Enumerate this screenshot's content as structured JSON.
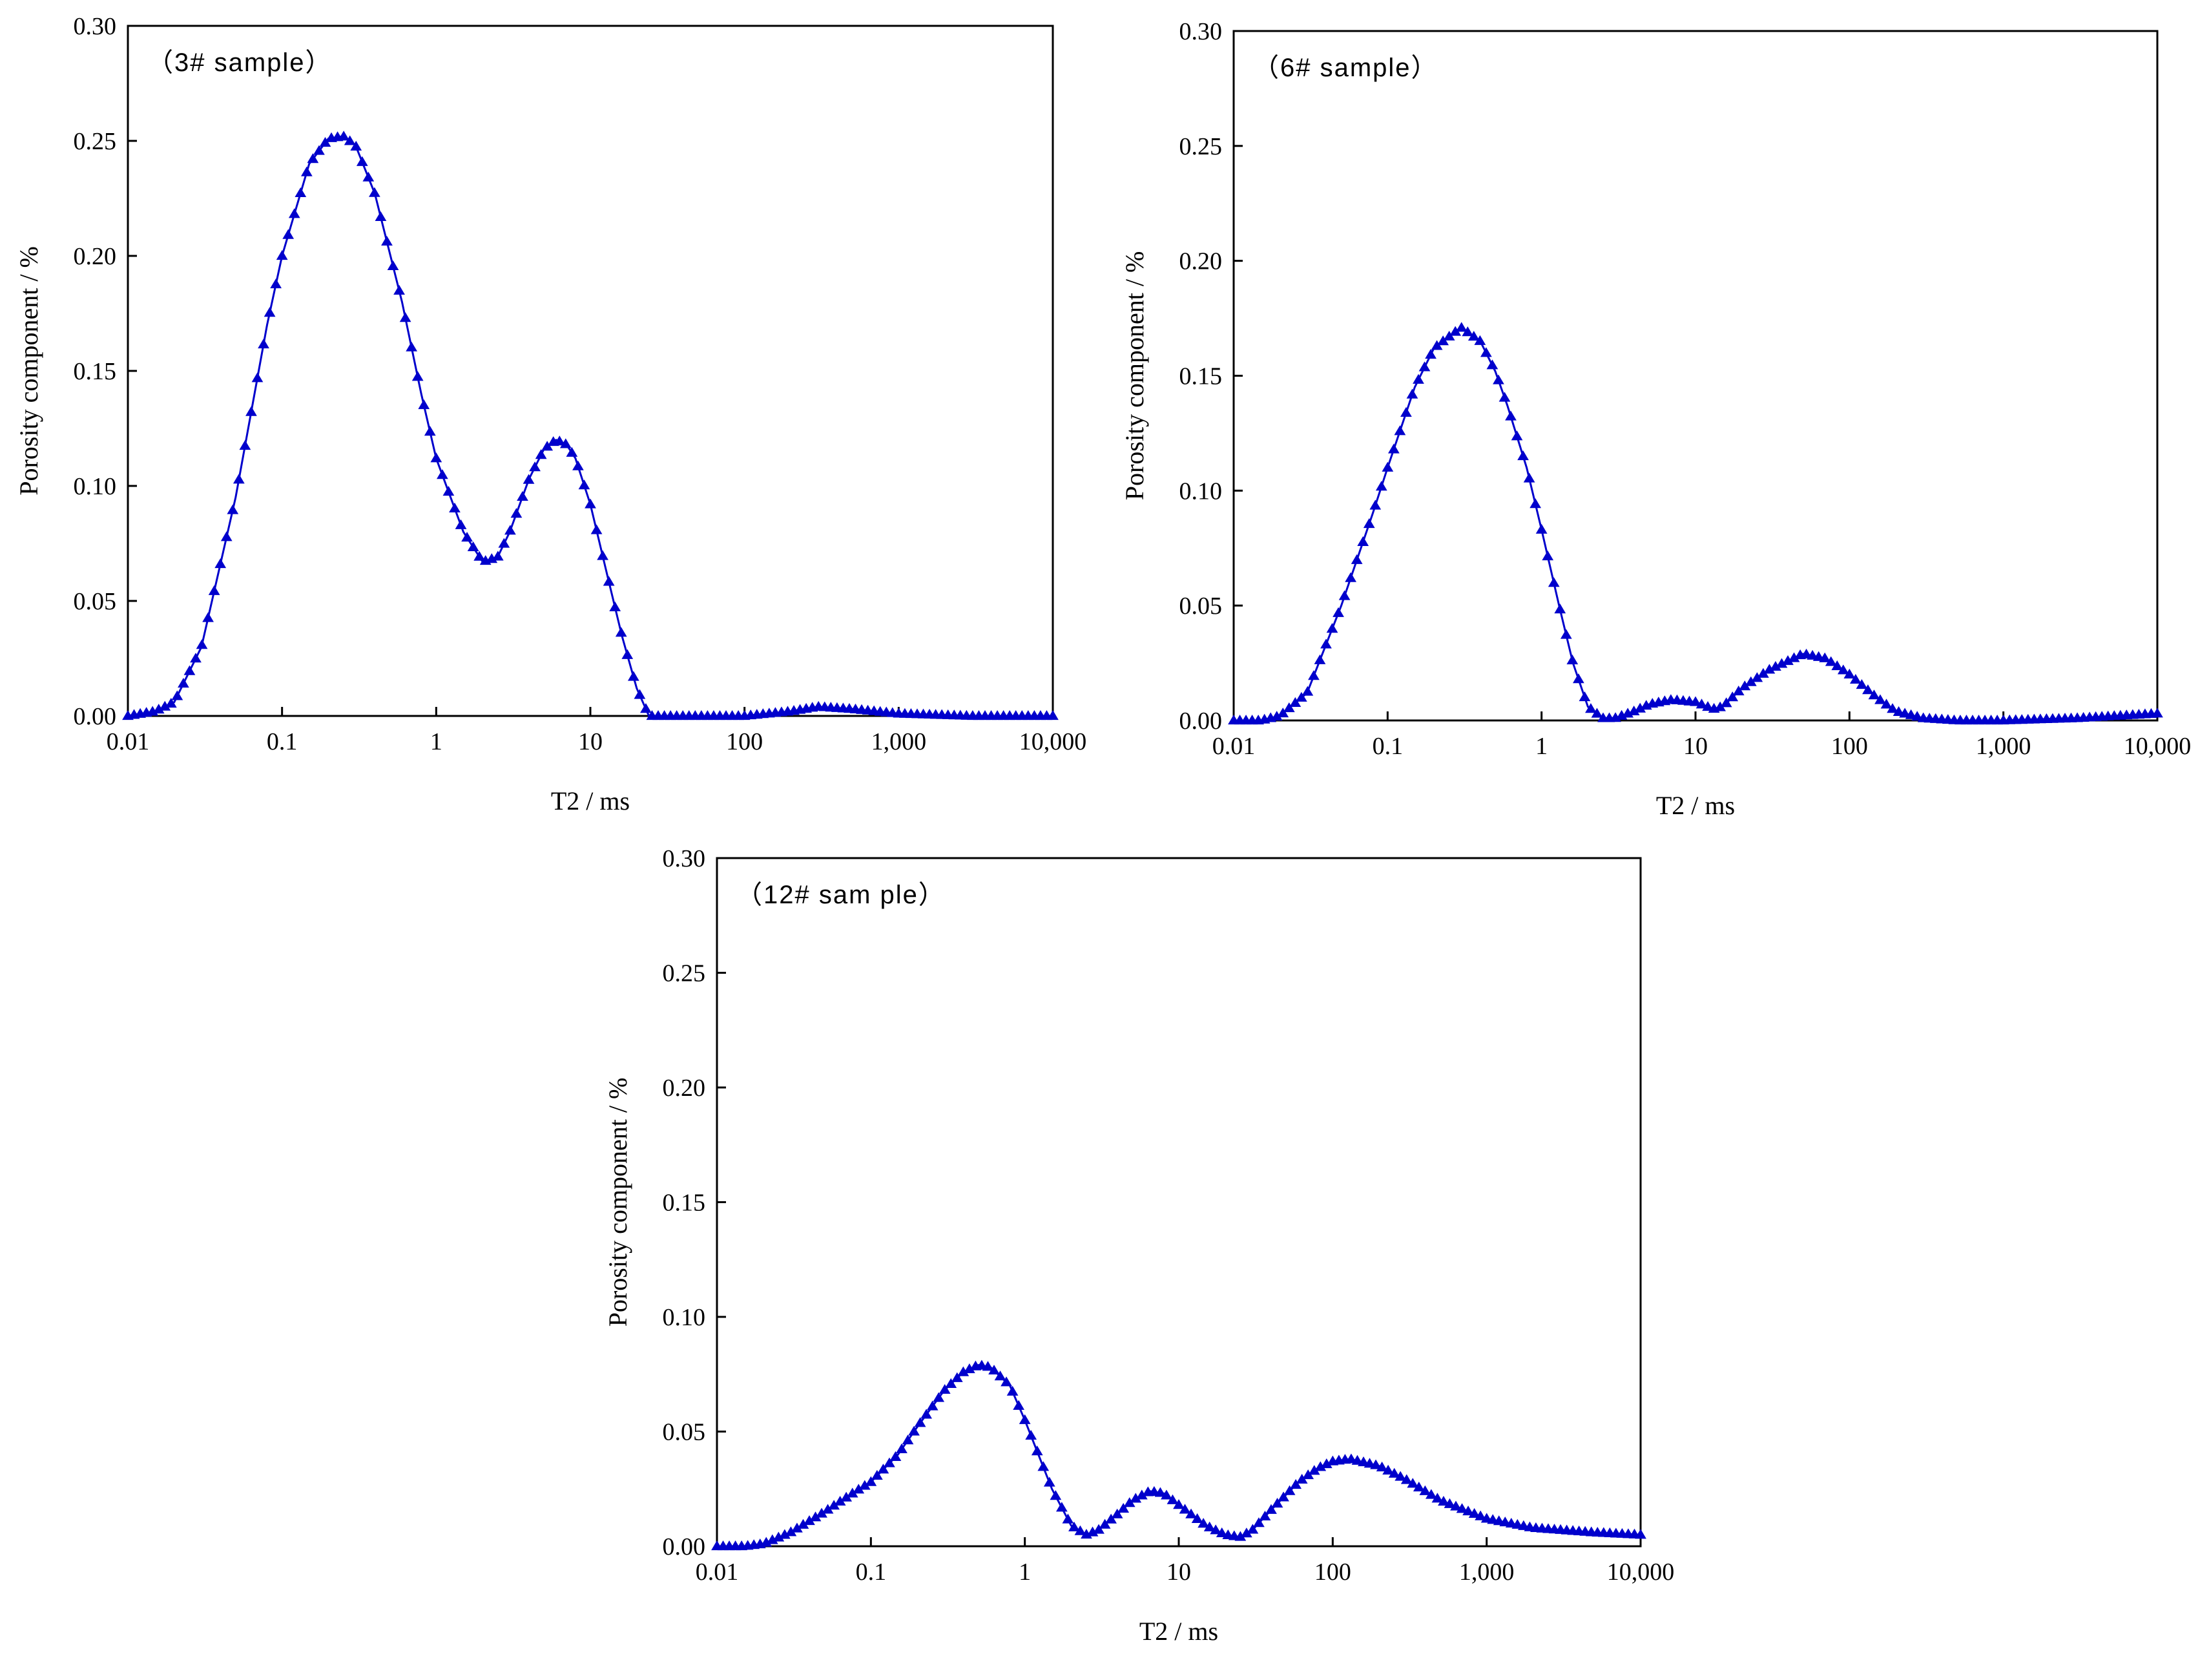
{
  "figure": {
    "colors": {
      "series": "#0000cc",
      "axes": "#000000",
      "background": "#ffffff"
    },
    "marker": "triangle"
  },
  "chart_data": [
    {
      "type": "line",
      "title": "（3# sample）",
      "xlabel": "T2 / ms",
      "ylabel": "Porosity component / %",
      "xscale": "log",
      "xlim": [
        0.01,
        10000
      ],
      "ylim": [
        0,
        0.3
      ],
      "xticks": [
        "0.01",
        "0.1",
        "1",
        "10",
        "100",
        "1,000",
        "10,000"
      ],
      "yticks": [
        "0.00",
        "0.05",
        "0.10",
        "0.15",
        "0.20",
        "0.25",
        "0.30"
      ],
      "grid": false,
      "x": [
        0.01,
        0.015,
        0.02,
        0.03,
        0.05,
        0.08,
        0.1,
        0.15,
        0.2,
        0.25,
        0.3,
        0.4,
        0.6,
        0.8,
        1,
        1.5,
        2,
        2.5,
        3,
        4,
        5,
        6,
        7,
        8,
        10,
        13,
        16,
        20,
        24,
        30,
        50,
        100,
        200,
        300,
        500,
        1000,
        3000,
        10000
      ],
      "y": [
        0.0,
        0.002,
        0.006,
        0.03,
        0.095,
        0.17,
        0.2,
        0.24,
        0.251,
        0.252,
        0.248,
        0.227,
        0.18,
        0.14,
        0.112,
        0.08,
        0.067,
        0.069,
        0.08,
        0.103,
        0.116,
        0.12,
        0.118,
        0.112,
        0.092,
        0.06,
        0.035,
        0.012,
        0.0,
        0.0,
        0.0,
        0.0,
        0.002,
        0.004,
        0.003,
        0.001,
        0.0,
        0.0
      ]
    },
    {
      "type": "line",
      "title": "（6# sample）",
      "xlabel": "T2 / ms",
      "ylabel": "Porosity component / %",
      "xscale": "log",
      "xlim": [
        0.01,
        10000
      ],
      "ylim": [
        0,
        0.3
      ],
      "xticks": [
        "0.01",
        "0.1",
        "1",
        "10",
        "100",
        "1,000",
        "10,000"
      ],
      "yticks": [
        "0.00",
        "0.05",
        "0.10",
        "0.15",
        "0.20",
        "0.25",
        "0.30"
      ],
      "grid": false,
      "x": [
        0.01,
        0.015,
        0.02,
        0.03,
        0.05,
        0.08,
        0.1,
        0.15,
        0.2,
        0.3,
        0.4,
        0.5,
        0.6,
        0.8,
        1,
        1.3,
        1.6,
        2,
        2.5,
        3,
        4,
        5,
        7,
        10,
        13,
        15,
        20,
        30,
        50,
        70,
        100,
        150,
        200,
        300,
        500,
        1000,
        3000,
        10000
      ],
      "y": [
        0.0,
        0.0,
        0.002,
        0.012,
        0.05,
        0.09,
        0.11,
        0.145,
        0.162,
        0.171,
        0.165,
        0.152,
        0.137,
        0.11,
        0.083,
        0.05,
        0.025,
        0.006,
        0.001,
        0.001,
        0.004,
        0.007,
        0.009,
        0.008,
        0.005,
        0.006,
        0.014,
        0.022,
        0.029,
        0.027,
        0.02,
        0.01,
        0.004,
        0.001,
        0.0,
        0.0,
        0.001,
        0.003
      ]
    },
    {
      "type": "line",
      "title": "（12# sam ple）",
      "xlabel": "T2 / ms",
      "ylabel": "Porosity component / %",
      "xscale": "log",
      "xlim": [
        0.01,
        10000
      ],
      "ylim": [
        0,
        0.3
      ],
      "xticks": [
        "0.01",
        "0.1",
        "1",
        "10",
        "100",
        "1,000",
        "10,000"
      ],
      "yticks": [
        "0.00",
        "0.05",
        "0.10",
        "0.15",
        "0.20",
        "0.25",
        "0.30"
      ],
      "grid": false,
      "x": [
        0.01,
        0.015,
        0.02,
        0.03,
        0.05,
        0.08,
        0.1,
        0.15,
        0.2,
        0.3,
        0.4,
        0.5,
        0.6,
        0.8,
        1,
        1.5,
        2,
        2.5,
        3,
        4,
        5,
        6.5,
        8,
        10,
        15,
        20,
        25,
        30,
        40,
        60,
        80,
        100,
        130,
        200,
        300,
        500,
        1000,
        2000,
        5000,
        10000
      ],
      "y": [
        0.0,
        0.0,
        0.001,
        0.006,
        0.015,
        0.024,
        0.028,
        0.04,
        0.052,
        0.068,
        0.076,
        0.079,
        0.078,
        0.07,
        0.055,
        0.025,
        0.009,
        0.005,
        0.007,
        0.014,
        0.02,
        0.024,
        0.023,
        0.018,
        0.009,
        0.005,
        0.004,
        0.007,
        0.016,
        0.028,
        0.034,
        0.037,
        0.038,
        0.035,
        0.029,
        0.02,
        0.012,
        0.008,
        0.006,
        0.005
      ]
    }
  ]
}
